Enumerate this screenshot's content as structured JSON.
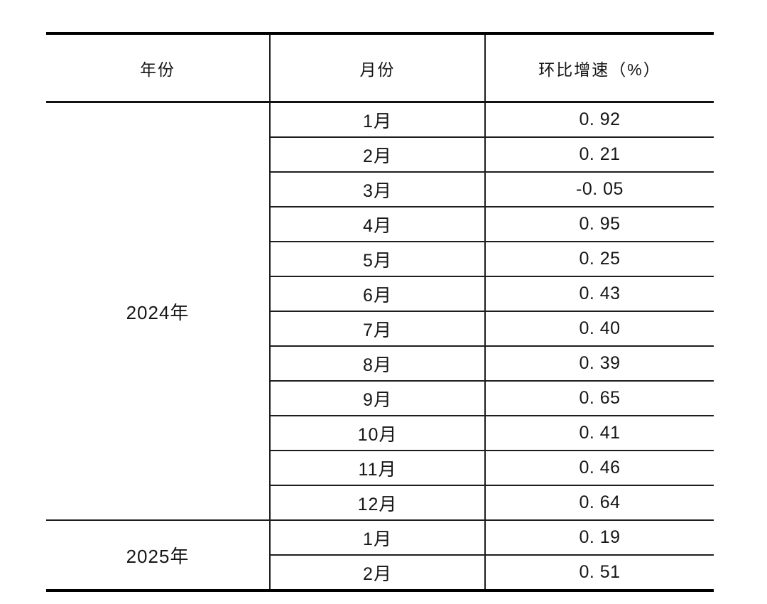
{
  "page": {
    "background": "#ffffff",
    "line_color": "#1d1d1d",
    "text_color": "#161616"
  },
  "table": {
    "columns": [
      {
        "key": "year",
        "label": "年份"
      },
      {
        "key": "month",
        "label": "月份"
      },
      {
        "key": "growth",
        "label": "环比增速（%）"
      }
    ],
    "groups": [
      {
        "year": "2024年",
        "rows": [
          {
            "month": "1月",
            "value": "0. 92"
          },
          {
            "month": "2月",
            "value": "0. 21"
          },
          {
            "month": "3月",
            "value": "-0. 05"
          },
          {
            "month": "4月",
            "value": "0. 95"
          },
          {
            "month": "5月",
            "value": "0. 25"
          },
          {
            "month": "6月",
            "value": "0. 43"
          },
          {
            "month": "7月",
            "value": "0. 40"
          },
          {
            "month": "8月",
            "value": "0. 39"
          },
          {
            "month": "9月",
            "value": "0. 65"
          },
          {
            "month": "10月",
            "value": "0. 41"
          },
          {
            "month": "11月",
            "value": "0. 46"
          },
          {
            "month": "12月",
            "value": "0. 64"
          }
        ]
      },
      {
        "year": "2025年",
        "rows": [
          {
            "month": "1月",
            "value": "0. 19"
          },
          {
            "month": "2月",
            "value": "0. 51"
          }
        ]
      }
    ]
  },
  "chart_data": {
    "type": "table",
    "title": "",
    "columns": [
      "年份",
      "月份",
      "环比增速（%）"
    ],
    "rows": [
      [
        "2024年",
        "1月",
        0.92
      ],
      [
        "2024年",
        "2月",
        0.21
      ],
      [
        "2024年",
        "3月",
        -0.05
      ],
      [
        "2024年",
        "4月",
        0.95
      ],
      [
        "2024年",
        "5月",
        0.25
      ],
      [
        "2024年",
        "6月",
        0.43
      ],
      [
        "2024年",
        "7月",
        0.4
      ],
      [
        "2024年",
        "8月",
        0.39
      ],
      [
        "2024年",
        "9月",
        0.65
      ],
      [
        "2024年",
        "10月",
        0.41
      ],
      [
        "2024年",
        "11月",
        0.46
      ],
      [
        "2024年",
        "12月",
        0.64
      ],
      [
        "2025年",
        "1月",
        0.19
      ],
      [
        "2025年",
        "2月",
        0.51
      ]
    ]
  }
}
